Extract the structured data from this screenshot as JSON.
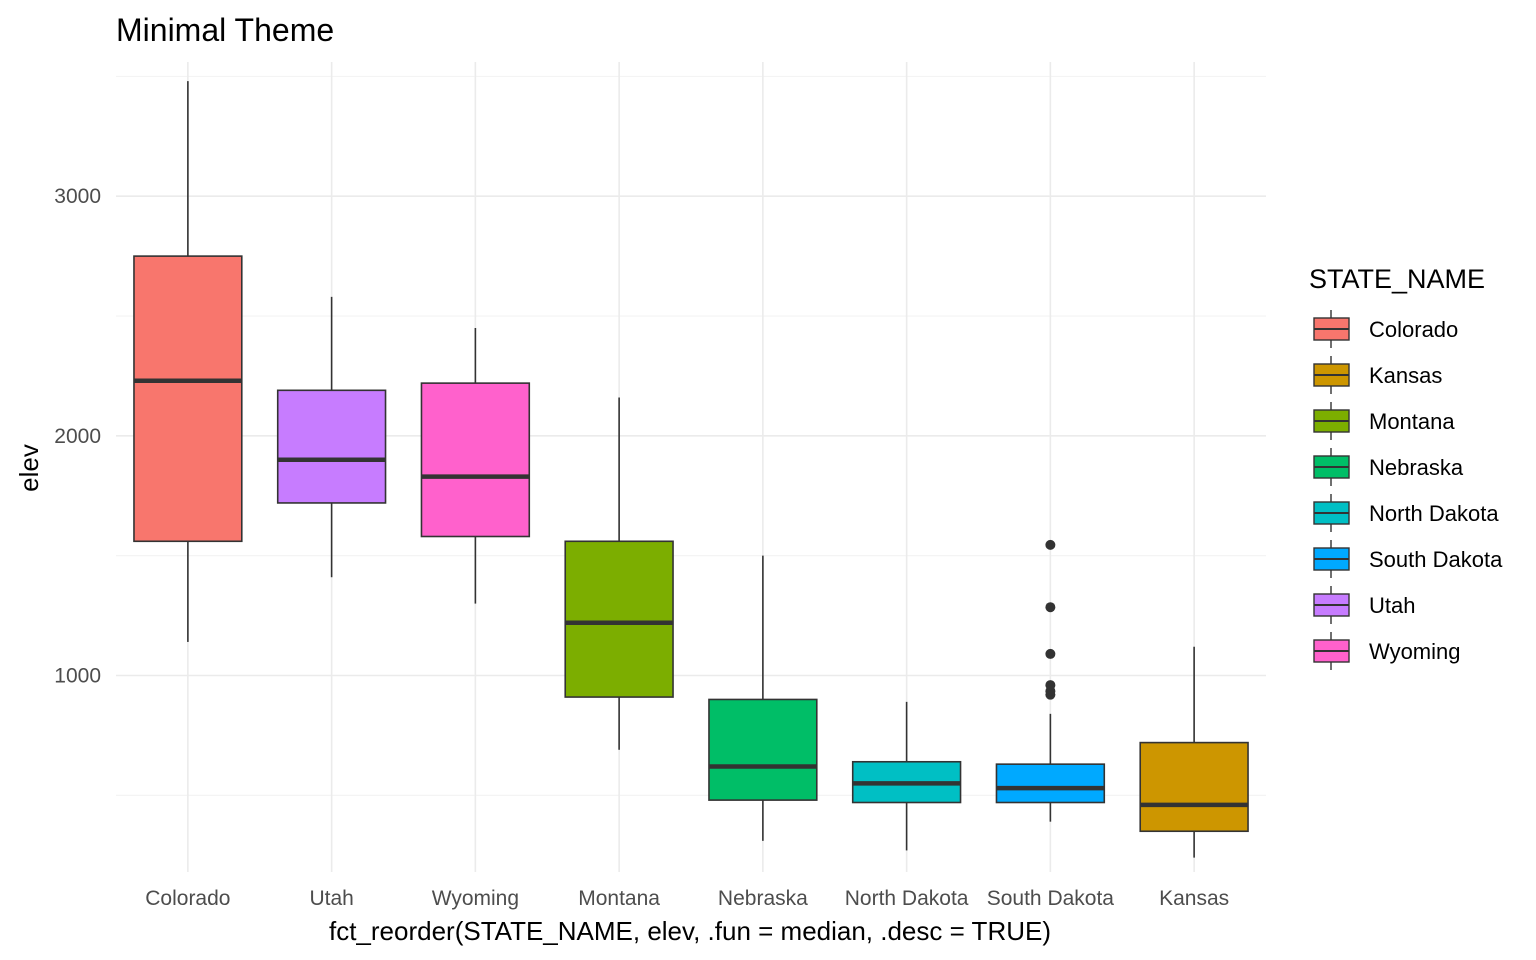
{
  "chart_data": {
    "type": "boxplot",
    "title": "Minimal Theme",
    "xlabel": "fct_reorder(STATE_NAME, elev, .fun = median, .desc = TRUE)",
    "ylabel": "elev",
    "ylim": [
      180,
      3560
    ],
    "yticks": [
      1000,
      2000,
      3000
    ],
    "y_minor_ticks": [
      500,
      1500,
      2500,
      3500
    ],
    "grid": true,
    "legend_position": "right",
    "legend": {
      "title": "STATE_NAME",
      "entries": [
        "Colorado",
        "Kansas",
        "Montana",
        "Nebraska",
        "North Dakota",
        "South Dakota",
        "Utah",
        "Wyoming"
      ]
    },
    "categories": [
      "Colorado",
      "Utah",
      "Wyoming",
      "Montana",
      "Nebraska",
      "North Dakota",
      "South Dakota",
      "Kansas"
    ],
    "colors": {
      "Colorado": "#F8766D",
      "Kansas": "#CD9600",
      "Montana": "#7CAE00",
      "Nebraska": "#00BE67",
      "North Dakota": "#00BFC4",
      "South Dakota": "#00A9FF",
      "Utah": "#C77CFF",
      "Wyoming": "#FF61CC"
    },
    "boxes": [
      {
        "category": "Colorado",
        "whisker_low": 1140,
        "q1": 1560,
        "median": 2230,
        "q3": 2750,
        "whisker_high": 3480,
        "outliers": []
      },
      {
        "category": "Utah",
        "whisker_low": 1410,
        "q1": 1720,
        "median": 1900,
        "q3": 2190,
        "whisker_high": 2580,
        "outliers": []
      },
      {
        "category": "Wyoming",
        "whisker_low": 1300,
        "q1": 1580,
        "median": 1830,
        "q3": 2220,
        "whisker_high": 2450,
        "outliers": []
      },
      {
        "category": "Montana",
        "whisker_low": 690,
        "q1": 910,
        "median": 1220,
        "q3": 1560,
        "whisker_high": 2160,
        "outliers": []
      },
      {
        "category": "Nebraska",
        "whisker_low": 310,
        "q1": 480,
        "median": 620,
        "q3": 900,
        "whisker_high": 1500,
        "outliers": []
      },
      {
        "category": "North Dakota",
        "whisker_low": 270,
        "q1": 470,
        "median": 550,
        "q3": 640,
        "whisker_high": 890,
        "outliers": []
      },
      {
        "category": "South Dakota",
        "whisker_low": 390,
        "q1": 470,
        "median": 530,
        "q3": 630,
        "whisker_high": 840,
        "outliers": [
          920,
          935,
          960,
          1090,
          1285,
          1545
        ]
      },
      {
        "category": "Kansas",
        "whisker_low": 240,
        "q1": 350,
        "median": 460,
        "q3": 720,
        "whisker_high": 1120,
        "outliers": []
      }
    ]
  }
}
